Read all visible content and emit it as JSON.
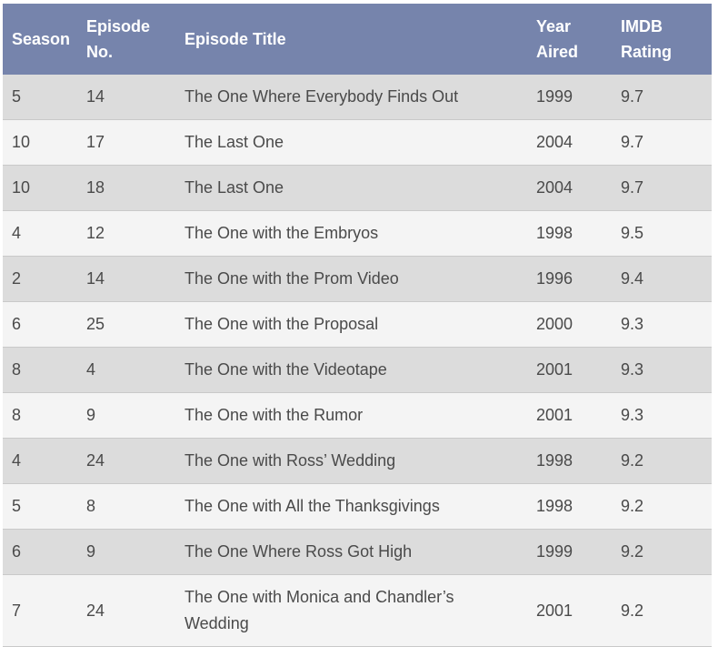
{
  "headers": {
    "season": "Season",
    "episode": [
      "Episode",
      "No."
    ],
    "title": "Episode Title",
    "year": [
      "Year",
      "Aired"
    ],
    "rating": [
      "IMDB",
      "Rating"
    ]
  },
  "rows": [
    {
      "season": "5",
      "episode": "14",
      "title": "The One Where Everybody Finds Out",
      "year": "1999",
      "rating": "9.7"
    },
    {
      "season": "10",
      "episode": "17",
      "title": "The Last One",
      "year": "2004",
      "rating": "9.7"
    },
    {
      "season": "10",
      "episode": "18",
      "title": "The Last One",
      "year": "2004",
      "rating": "9.7"
    },
    {
      "season": "4",
      "episode": "12",
      "title": "The One with the Embryos",
      "year": "1998",
      "rating": "9.5"
    },
    {
      "season": "2",
      "episode": "14",
      "title": "The One with the Prom Video",
      "year": "1996",
      "rating": "9.4"
    },
    {
      "season": "6",
      "episode": "25",
      "title": "The One with the Proposal",
      "year": "2000",
      "rating": "9.3"
    },
    {
      "season": "8",
      "episode": "4",
      "title": "The One with the Videotape",
      "year": "2001",
      "rating": "9.3"
    },
    {
      "season": "8",
      "episode": "9",
      "title": "The One with the Rumor",
      "year": "2001",
      "rating": "9.3"
    },
    {
      "season": "4",
      "episode": "24",
      "title": "The One with Ross’ Wedding",
      "year": "1998",
      "rating": "9.2"
    },
    {
      "season": "5",
      "episode": "8",
      "title": "The One with All the Thanksgivings",
      "year": "1998",
      "rating": "9.2"
    },
    {
      "season": "6",
      "episode": "9",
      "title": "The One Where Ross Got High",
      "year": "1999",
      "rating": "9.2"
    },
    {
      "season": "7",
      "episode": "24",
      "title": [
        "The One with Monica and Chandler’s",
        "Wedding"
      ],
      "year": "2001",
      "rating": "9.2"
    }
  ],
  "colors": {
    "header_bg": "#7684ac",
    "row_odd": "#dcdcdc",
    "row_even": "#f4f4f4"
  }
}
